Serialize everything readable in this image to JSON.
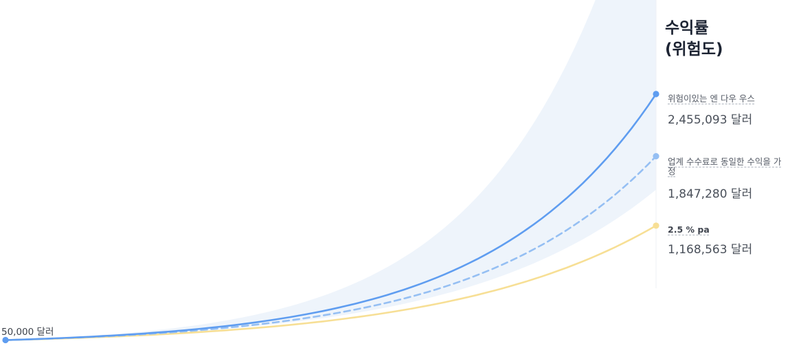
{
  "chart_data": {
    "type": "line",
    "title": "수익률\n(위험도)",
    "title_lines": [
      "수익률",
      "(위험도)"
    ],
    "start": {
      "value": 50000,
      "label": "50,000 달러"
    },
    "xlim": [
      0,
      40
    ],
    "ylim": [
      0,
      3200000
    ],
    "grid": false,
    "legend_placement": "right",
    "band": {
      "color": "#eef4fb",
      "lower_end": 1520000,
      "upper_end": 5200000
    },
    "series": [
      {
        "name": "위험이있는 엔 다우 우스",
        "end_value": 2455093,
        "end_label": "2,455,093 달러",
        "color": "#5f9df0",
        "style": "solid",
        "values": [
          50000,
          2455093
        ]
      },
      {
        "name": "업계 수수료로 동일한 수익을 가정",
        "end_value": 1847280,
        "end_label": "1,847,280 달러",
        "color": "#95bff3",
        "style": "dashed",
        "values": [
          50000,
          1847280
        ]
      },
      {
        "name": "2.5 % pa",
        "end_value": 1168563,
        "end_label": "1,168,563 달러",
        "color": "#f7df95",
        "style": "solid",
        "values": [
          50000,
          1168563
        ]
      }
    ]
  }
}
